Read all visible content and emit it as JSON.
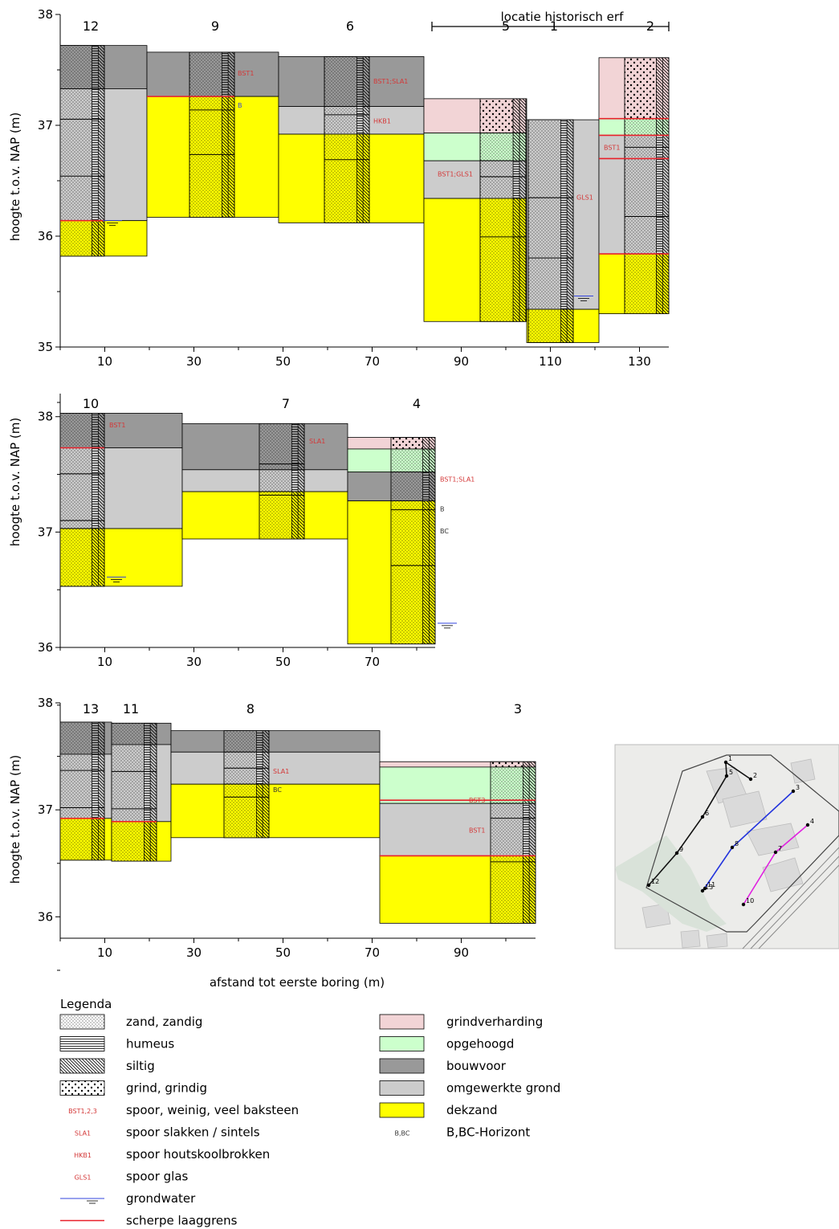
{
  "colors": {
    "bouwvoor": "#999999",
    "omgewerkt": "#cccccc",
    "dekzand": "#ffff00",
    "opgehoogd": "#ccffcc",
    "grindverharding": "#f2d4d6",
    "sharp": "#e8202a",
    "water": "#3344dd",
    "redlabel": "#d43838"
  },
  "y_axis_label": "hoogte t.o.v. NAP (m)",
  "x_axis_label": "afstand tot eerste boring (m)",
  "panels": [
    {
      "x_ticks": [
        "10",
        "30",
        "50",
        "70",
        "90",
        "110",
        "130"
      ],
      "y_ticks": [
        "38",
        "37",
        "36",
        "35"
      ],
      "bracket_label": "locatie historisch erf",
      "borings": [
        {
          "label": "12",
          "layers": [
            {
              "top": 37.72,
              "bot": 37.33,
              "type": "bouwvoor"
            },
            {
              "top": 37.33,
              "bot": 36.14,
              "type": "omgewerkt"
            },
            {
              "top": 36.14,
              "bot": 35.82,
              "type": "dekzand"
            }
          ]
        },
        {
          "label": "9",
          "layers": [
            {
              "top": 37.66,
              "bot": 37.26,
              "type": "bouwvoor"
            },
            {
              "top": 37.26,
              "bot": 36.17,
              "type": "dekzand"
            }
          ],
          "annots": [
            {
              "text": "BST1",
              "y": 37.47,
              "color": "red"
            },
            {
              "text": "B",
              "y": 37.18,
              "color": "blue"
            }
          ]
        },
        {
          "label": "6",
          "layers": [
            {
              "top": 37.62,
              "bot": 37.17,
              "type": "bouwvoor"
            },
            {
              "top": 37.17,
              "bot": 36.92,
              "type": "omgewerkt"
            },
            {
              "top": 36.92,
              "bot": 36.12,
              "type": "dekzand"
            }
          ],
          "annots": [
            {
              "text": "BST1;SLA1",
              "y": 37.4,
              "color": "red"
            },
            {
              "text": "HKB1",
              "y": 37.04,
              "color": "red"
            }
          ]
        },
        {
          "label": "5",
          "layers": [
            {
              "top": 37.24,
              "bot": 36.93,
              "type": "grindverharding"
            },
            {
              "top": 36.93,
              "bot": 36.68,
              "type": "opgehoogd"
            },
            {
              "top": 36.68,
              "bot": 36.34,
              "type": "omgewerkt"
            },
            {
              "top": 36.34,
              "bot": 35.23,
              "type": "dekzand"
            }
          ],
          "annots": [
            {
              "text": "BST1;GLS1",
              "y": 36.56,
              "color": "red"
            }
          ]
        },
        {
          "label": "1",
          "layers": [
            {
              "top": 37.05,
              "bot": 35.34,
              "type": "omgewerkt"
            },
            {
              "top": 35.34,
              "bot": 35.04,
              "type": "dekzand"
            }
          ],
          "annots": [
            {
              "text": "GLS1",
              "y": 36.35,
              "color": "red"
            }
          ]
        },
        {
          "label": "2",
          "layers": [
            {
              "top": 37.61,
              "bot": 37.06,
              "type": "grindverharding"
            },
            {
              "top": 37.06,
              "bot": 36.91,
              "type": "opgehoogd"
            },
            {
              "top": 36.91,
              "bot": 35.84,
              "type": "omgewerkt"
            },
            {
              "top": 35.84,
              "bot": 35.3,
              "type": "dekzand"
            }
          ],
          "annots": [
            {
              "text": "BST1",
              "y": 36.8,
              "color": "red"
            }
          ]
        }
      ]
    },
    {
      "x_ticks": [
        "10",
        "30",
        "50",
        "70"
      ],
      "y_ticks": [
        "38",
        "37",
        "36"
      ],
      "borings": [
        {
          "label": "10",
          "layers": [
            {
              "top": 38.03,
              "bot": 37.73,
              "type": "bouwvoor"
            },
            {
              "top": 37.73,
              "bot": 37.03,
              "type": "omgewerkt"
            },
            {
              "top": 37.03,
              "bot": 36.53,
              "type": "dekzand"
            }
          ],
          "annots": [
            {
              "text": "BST1",
              "y": 37.93,
              "color": "red"
            }
          ]
        },
        {
          "label": "7",
          "layers": [
            {
              "top": 37.94,
              "bot": 37.54,
              "type": "bouwvoor"
            },
            {
              "top": 37.54,
              "bot": 37.35,
              "type": "omgewerkt"
            },
            {
              "top": 37.35,
              "bot": 36.94,
              "type": "dekzand"
            }
          ],
          "annots": [
            {
              "text": "SLA1",
              "y": 37.79,
              "color": "red"
            }
          ]
        },
        {
          "label": "4",
          "layers": [
            {
              "top": 37.82,
              "bot": 37.72,
              "type": "grindverharding"
            },
            {
              "top": 37.72,
              "bot": 37.52,
              "type": "opgehoogd"
            },
            {
              "top": 37.52,
              "bot": 37.27,
              "type": "bouwvoor"
            },
            {
              "top": 37.27,
              "bot": 36.03,
              "type": "dekzand"
            }
          ],
          "annots": [
            {
              "text": "BST1;SLA1",
              "y": 37.46,
              "color": "red"
            },
            {
              "text": "B",
              "y": 37.2,
              "color": "black"
            },
            {
              "text": "BC",
              "y": 37.01,
              "color": "black"
            }
          ]
        }
      ]
    },
    {
      "x_ticks": [
        "10",
        "30",
        "50",
        "70",
        "90"
      ],
      "y_ticks": [
        "38",
        "37",
        "36"
      ],
      "borings": [
        {
          "label": "13",
          "layers": [
            {
              "top": 37.82,
              "bot": 37.52,
              "type": "bouwvoor"
            },
            {
              "top": 37.52,
              "bot": 36.92,
              "type": "omgewerkt"
            },
            {
              "top": 36.92,
              "bot": 36.53,
              "type": "dekzand"
            }
          ]
        },
        {
          "label": "11",
          "layers": [
            {
              "top": 37.81,
              "bot": 37.61,
              "type": "bouwvoor"
            },
            {
              "top": 37.61,
              "bot": 36.89,
              "type": "omgewerkt"
            },
            {
              "top": 36.89,
              "bot": 36.52,
              "type": "dekzand"
            }
          ]
        },
        {
          "label": "8",
          "layers": [
            {
              "top": 37.74,
              "bot": 37.54,
              "type": "bouwvoor"
            },
            {
              "top": 37.54,
              "bot": 37.24,
              "type": "omgewerkt"
            },
            {
              "top": 37.24,
              "bot": 36.74,
              "type": "dekzand"
            }
          ],
          "annots": [
            {
              "text": "SLA1",
              "y": 37.36,
              "color": "red"
            },
            {
              "text": "BC",
              "y": 37.19,
              "color": "black"
            }
          ]
        },
        {
          "label": "3",
          "layers": [
            {
              "top": 37.45,
              "bot": 37.4,
              "type": "grindverharding"
            },
            {
              "top": 37.4,
              "bot": 37.06,
              "type": "opgehoogd"
            },
            {
              "top": 37.06,
              "bot": 36.57,
              "type": "omgewerkt"
            },
            {
              "top": 36.57,
              "bot": 35.94,
              "type": "dekzand"
            }
          ],
          "annots": [
            {
              "text": "BST3",
              "y": 37.09,
              "color": "red"
            },
            {
              "text": "BST1",
              "y": 36.81,
              "color": "red"
            }
          ]
        }
      ]
    }
  ],
  "map_points": [
    "1",
    "2",
    "3",
    "4",
    "5",
    "6",
    "7",
    "8",
    "9",
    "10",
    "11",
    "12",
    "13"
  ],
  "legend": {
    "title": "Legenda",
    "items": [
      {
        "symbol": "zand",
        "label": "zand, zandig"
      },
      {
        "symbol": "humeus",
        "label": "humeus"
      },
      {
        "symbol": "siltig",
        "label": "siltig"
      },
      {
        "symbol": "grind",
        "label": "grind, grindig"
      },
      {
        "symbol": "text",
        "code": "BST1,2,3",
        "label": "spoor, weinig, veel baksteen"
      },
      {
        "symbol": "text",
        "code": "SLA1",
        "label": "spoor slakken / sintels"
      },
      {
        "symbol": "text",
        "code": "HKB1",
        "label": "spoor houtskoolbrokken"
      },
      {
        "symbol": "text",
        "code": "GLS1",
        "label": "spoor glas"
      },
      {
        "symbol": "water",
        "label": "grondwater"
      },
      {
        "symbol": "sharp",
        "label": "scherpe laaggrens"
      },
      {
        "symbol": "grindverharding",
        "label": "grindverharding"
      },
      {
        "symbol": "opgehoogd",
        "label": "opgehoogd"
      },
      {
        "symbol": "bouwvoor",
        "label": "bouwvoor"
      },
      {
        "symbol": "omgewerkt",
        "label": "omgewerkte grond"
      },
      {
        "symbol": "dekzand",
        "label": "dekzand"
      },
      {
        "symbol": "text",
        "code": "B,BC",
        "label": "B,BC-Horizont"
      }
    ]
  }
}
